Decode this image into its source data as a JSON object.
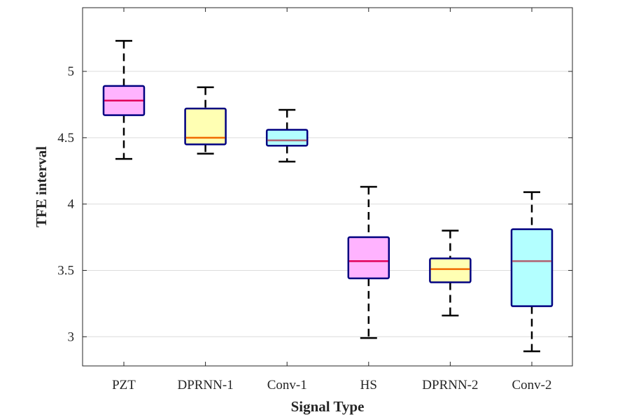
{
  "chart_data": {
    "type": "box",
    "title": "",
    "xlabel": "Signal Type",
    "ylabel": "TFE interval",
    "ylim": [
      2.78,
      5.48
    ],
    "yticks": [
      3,
      3.5,
      4,
      4.5,
      5
    ],
    "ytick_labels": [
      "3",
      "3.5",
      "4",
      "4.5",
      "5"
    ],
    "grid": "horizontal",
    "categories": [
      "PZT",
      "DPRNN-1",
      "Conv-1",
      "HS",
      "DPRNN-2",
      "Conv-2"
    ],
    "boxes": [
      {
        "name": "PZT",
        "whisker_low": 4.34,
        "q1": 4.67,
        "median": 4.78,
        "q3": 4.89,
        "whisker_high": 5.23,
        "fill": "#ffb3ff",
        "median_color": "#e0005a"
      },
      {
        "name": "DPRNN-1",
        "whisker_low": 4.38,
        "q1": 4.45,
        "median": 4.5,
        "q3": 4.72,
        "whisker_high": 4.88,
        "fill": "#ffffb3",
        "median_color": "#f06a00"
      },
      {
        "name": "Conv-1",
        "whisker_low": 4.32,
        "q1": 4.44,
        "median": 4.48,
        "q3": 4.56,
        "whisker_high": 4.71,
        "fill": "#b3ffff",
        "median_color": "#b06070"
      },
      {
        "name": "HS",
        "whisker_low": 2.99,
        "q1": 3.44,
        "median": 3.57,
        "q3": 3.75,
        "whisker_high": 4.13,
        "fill": "#ffb3ff",
        "median_color": "#e0005a"
      },
      {
        "name": "DPRNN-2",
        "whisker_low": 3.16,
        "q1": 3.41,
        "median": 3.51,
        "q3": 3.59,
        "whisker_high": 3.8,
        "fill": "#ffffb3",
        "median_color": "#f06a00"
      },
      {
        "name": "Conv-2",
        "whisker_low": 2.89,
        "q1": 3.23,
        "median": 3.57,
        "q3": 3.81,
        "whisker_high": 4.09,
        "fill": "#b3ffff",
        "median_color": "#b06070"
      }
    ],
    "colors": {
      "box_edge": "#000080",
      "whisker": "#000000",
      "grid": "#dcdcdc",
      "axis": "#262626"
    }
  }
}
